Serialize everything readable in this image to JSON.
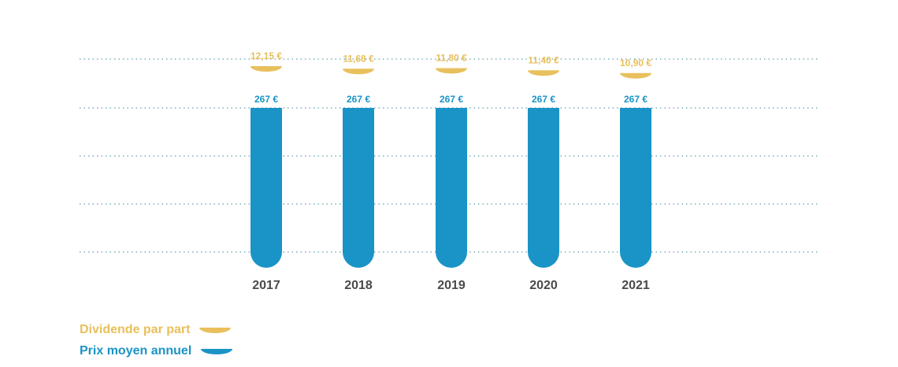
{
  "chart_data": {
    "type": "bar",
    "categories": [
      "2017",
      "2018",
      "2019",
      "2020",
      "2021"
    ],
    "series": [
      {
        "name": "Prix moyen annuel",
        "values": [
          267,
          267,
          267,
          267,
          267
        ],
        "labels": [
          "267 €",
          "267 €",
          "267 €",
          "267 €",
          "267 €"
        ],
        "color": "#1a94c6"
      },
      {
        "name": "Dividende par part",
        "values": [
          12.15,
          11.68,
          11.8,
          11.4,
          10.9
        ],
        "labels": [
          "12,15 €",
          "11,68 €",
          "11,80 €",
          "11,40 €",
          "10,90 €"
        ],
        "color": "#e8c05c"
      }
    ],
    "grid": true,
    "legend_position": "bottom-left"
  },
  "legend": {
    "dividend": "Dividende par part",
    "price": "Prix moyen annuel"
  }
}
